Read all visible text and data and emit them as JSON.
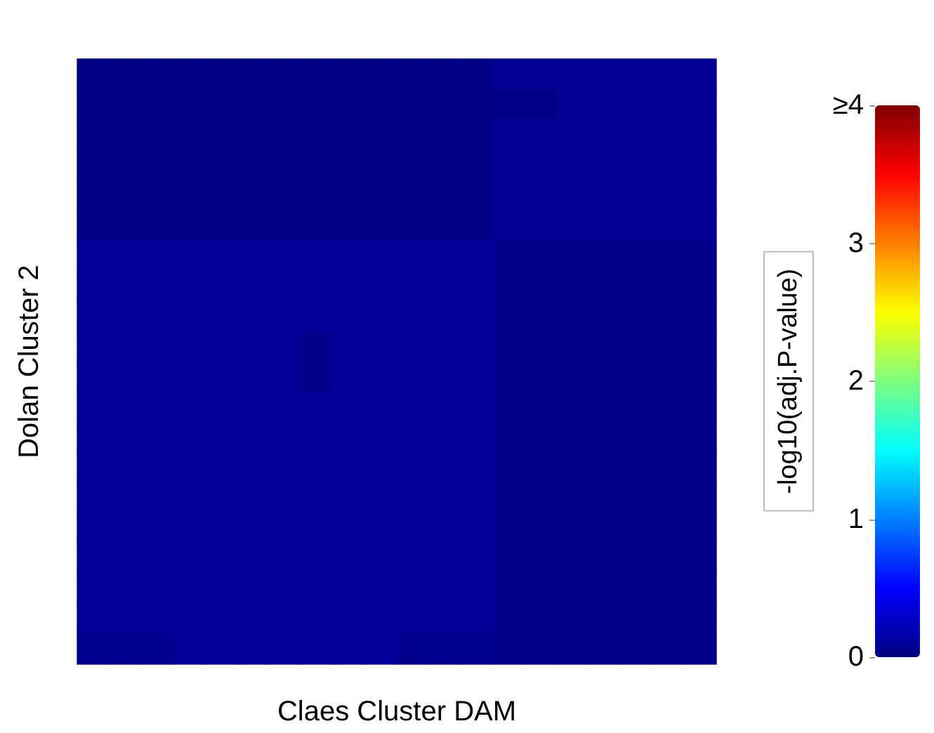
{
  "chart_data": {
    "type": "heatmap",
    "xlabel": "Claes Cluster DAM",
    "ylabel": "Dolan Cluster 2",
    "clabel": "-log10(adj.P-value)",
    "categories": [
      null,
      null,
      null,
      null,
      null,
      null,
      null,
      null,
      null,
      null,
      null,
      null,
      null,
      null,
      null,
      null,
      null,
      null,
      null,
      null
    ],
    "y_categories": [
      null,
      null,
      null,
      null,
      null,
      null,
      null,
      null,
      null,
      null,
      null,
      null,
      null,
      null,
      null,
      null,
      null,
      null,
      null,
      null
    ],
    "cells": [
      [
        0.02,
        0.02,
        0.02,
        0.02,
        0.02,
        0.02,
        0.02,
        0.02,
        0.02,
        0.02,
        0.02,
        0.02,
        0.02,
        0.08,
        0.08,
        0.08,
        0.08,
        0.08,
        0.08,
        0.08
      ],
      [
        0.02,
        0.02,
        0.02,
        0.02,
        0.02,
        0.02,
        0.02,
        0.02,
        0.02,
        0.02,
        0.02,
        0.02,
        0.02,
        0.03,
        0.03,
        0.08,
        0.08,
        0.08,
        0.08,
        0.08
      ],
      [
        0.02,
        0.02,
        0.02,
        0.02,
        0.02,
        0.02,
        0.02,
        0.02,
        0.02,
        0.02,
        0.02,
        0.02,
        0.02,
        0.08,
        0.08,
        0.08,
        0.08,
        0.08,
        0.08,
        0.08
      ],
      [
        0.02,
        0.02,
        0.02,
        0.02,
        0.02,
        0.02,
        0.02,
        0.02,
        0.02,
        0.02,
        0.02,
        0.02,
        0.02,
        0.08,
        0.08,
        0.08,
        0.08,
        0.08,
        0.08,
        0.08
      ],
      [
        0.02,
        0.02,
        0.02,
        0.02,
        0.02,
        0.02,
        0.02,
        0.02,
        0.02,
        0.02,
        0.02,
        0.02,
        0.02,
        0.08,
        0.08,
        0.08,
        0.08,
        0.08,
        0.08,
        0.08
      ],
      [
        0.02,
        0.02,
        0.02,
        0.02,
        0.02,
        0.02,
        0.02,
        0.02,
        0.02,
        0.02,
        0.02,
        0.02,
        0.02,
        0.08,
        0.08,
        0.08,
        0.08,
        0.08,
        0.08,
        0.08
      ],
      [
        0.1,
        0.1,
        0.1,
        0.1,
        0.1,
        0.1,
        0.1,
        0.1,
        0.1,
        0.1,
        0.1,
        0.1,
        0.1,
        0.05,
        0.05,
        0.05,
        0.05,
        0.05,
        0.05,
        0.05
      ],
      [
        0.1,
        0.1,
        0.1,
        0.1,
        0.1,
        0.1,
        0.1,
        0.1,
        0.1,
        0.1,
        0.1,
        0.1,
        0.1,
        0.05,
        0.05,
        0.05,
        0.05,
        0.05,
        0.05,
        0.05
      ],
      [
        0.1,
        0.1,
        0.1,
        0.1,
        0.1,
        0.1,
        0.1,
        0.1,
        0.1,
        0.1,
        0.1,
        0.1,
        0.1,
        0.05,
        0.05,
        0.05,
        0.05,
        0.05,
        0.05,
        0.05
      ],
      [
        0.1,
        0.1,
        0.1,
        0.1,
        0.1,
        0.1,
        0.1,
        0.05,
        0.1,
        0.1,
        0.1,
        0.1,
        0.1,
        0.05,
        0.05,
        0.05,
        0.05,
        0.05,
        0.05,
        0.05
      ],
      [
        0.1,
        0.1,
        0.1,
        0.1,
        0.1,
        0.1,
        0.1,
        0.05,
        0.1,
        0.1,
        0.1,
        0.1,
        0.1,
        0.05,
        0.05,
        0.05,
        0.05,
        0.05,
        0.05,
        0.05
      ],
      [
        0.1,
        0.1,
        0.1,
        0.1,
        0.1,
        0.1,
        0.1,
        0.1,
        0.1,
        0.1,
        0.1,
        0.1,
        0.1,
        0.05,
        0.05,
        0.05,
        0.05,
        0.05,
        0.05,
        0.05
      ],
      [
        0.1,
        0.1,
        0.1,
        0.1,
        0.1,
        0.1,
        0.1,
        0.1,
        0.1,
        0.1,
        0.1,
        0.1,
        0.1,
        0.05,
        0.05,
        0.05,
        0.05,
        0.05,
        0.05,
        0.05
      ],
      [
        0.1,
        0.1,
        0.1,
        0.1,
        0.1,
        0.1,
        0.1,
        0.1,
        0.1,
        0.1,
        0.1,
        0.1,
        0.1,
        0.05,
        0.05,
        0.05,
        0.05,
        0.05,
        0.05,
        0.05
      ],
      [
        0.1,
        0.1,
        0.1,
        0.1,
        0.1,
        0.1,
        0.1,
        0.1,
        0.1,
        0.1,
        0.1,
        0.1,
        0.1,
        0.05,
        0.05,
        0.05,
        0.05,
        0.05,
        0.05,
        0.05
      ],
      [
        0.1,
        0.1,
        0.1,
        0.1,
        0.1,
        0.1,
        0.1,
        0.1,
        0.1,
        0.1,
        0.1,
        0.1,
        0.1,
        0.05,
        0.05,
        0.05,
        0.05,
        0.05,
        0.05,
        0.05
      ],
      [
        0.1,
        0.1,
        0.1,
        0.1,
        0.1,
        0.1,
        0.1,
        0.1,
        0.1,
        0.1,
        0.1,
        0.1,
        0.1,
        0.05,
        0.05,
        0.05,
        0.05,
        0.05,
        0.05,
        0.05
      ],
      [
        0.1,
        0.1,
        0.1,
        0.1,
        0.1,
        0.1,
        0.1,
        0.1,
        0.1,
        0.1,
        0.1,
        0.1,
        0.1,
        0.05,
        0.05,
        0.05,
        0.05,
        0.05,
        0.05,
        0.05
      ],
      [
        0.1,
        0.1,
        0.1,
        0.1,
        0.1,
        0.1,
        0.1,
        0.1,
        0.1,
        0.1,
        0.1,
        0.1,
        0.1,
        0.05,
        0.05,
        0.05,
        0.05,
        0.05,
        0.05,
        0.05
      ],
      [
        0.06,
        0.06,
        0.06,
        0.1,
        0.1,
        0.1,
        0.1,
        0.1,
        0.1,
        0.1,
        0.06,
        0.06,
        0.06,
        0.05,
        0.05,
        0.05,
        0.05,
        0.05,
        0.05,
        0.05
      ]
    ],
    "clim": [
      0,
      4
    ],
    "cticks": [
      0,
      1,
      2,
      3,
      {
        "value": 4,
        "label": "≥4"
      }
    ]
  }
}
